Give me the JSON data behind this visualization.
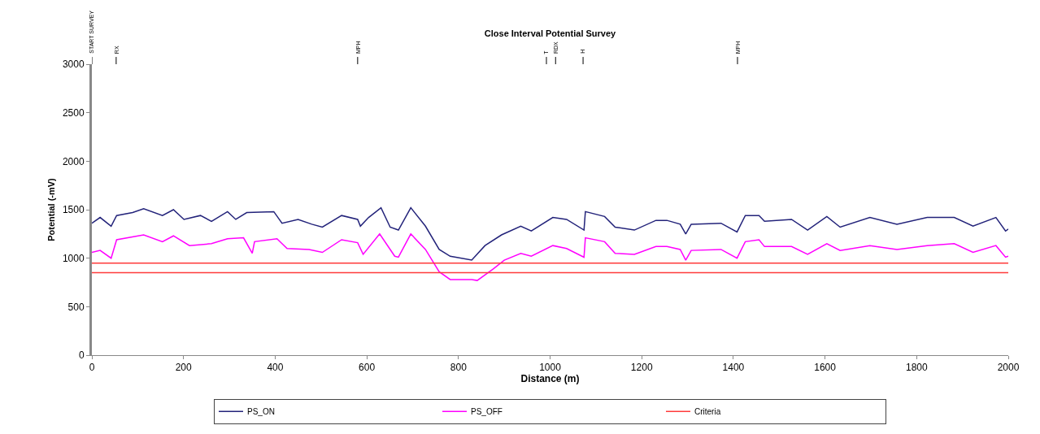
{
  "chart_data": {
    "type": "line",
    "title": "Close Interval Potential Survey",
    "xlabel": "Distance (m)",
    "ylabel": "Potential (-mV)",
    "xlim": [
      0,
      2000
    ],
    "xticks": [
      0,
      200,
      400,
      600,
      800,
      1000,
      1200,
      1400,
      1600,
      1800,
      2000
    ],
    "ylim": [
      0,
      3000
    ],
    "yticks": [
      0,
      500,
      1000,
      1500,
      2000,
      2500,
      3000
    ],
    "grid": false,
    "legend": "bottom",
    "marker": "none",
    "line_style": "solid",
    "ref_lines": [
      {
        "axis": "x",
        "value": 0,
        "label": "START SURVEY"
      },
      {
        "axis": "x",
        "value": 53,
        "label": "RX"
      },
      {
        "axis": "x",
        "value": 580,
        "label": "MPH"
      },
      {
        "axis": "x",
        "value": 992,
        "label": "T"
      },
      {
        "axis": "x",
        "value": 1012,
        "label": "RDX"
      },
      {
        "axis": "x",
        "value": 1072,
        "label": "H"
      },
      {
        "axis": "x",
        "value": 1409,
        "label": "MPH"
      }
    ],
    "series": [
      {
        "name": "PS_ON",
        "color": "#23237a",
        "x": [
          0,
          18,
          42,
          54,
          89,
          113,
          154,
          178,
          201,
          237,
          261,
          296,
          314,
          338,
          397,
          415,
          450,
          480,
          503,
          545,
          580,
          586,
          604,
          631,
          651,
          669,
          696,
          728,
          758,
          782,
          829,
          858,
          894,
          936,
          959,
          1006,
          1036,
          1074,
          1077,
          1119,
          1142,
          1184,
          1231,
          1255,
          1284,
          1296,
          1308,
          1373,
          1408,
          1426,
          1456,
          1468,
          1527,
          1562,
          1604,
          1633,
          1698,
          1757,
          1823,
          1882,
          1923,
          1973,
          1994,
          2000
        ],
        "values": [
          1360,
          1420,
          1330,
          1440,
          1470,
          1510,
          1440,
          1500,
          1400,
          1440,
          1380,
          1480,
          1400,
          1470,
          1480,
          1360,
          1400,
          1350,
          1320,
          1440,
          1400,
          1330,
          1420,
          1520,
          1320,
          1290,
          1520,
          1330,
          1090,
          1020,
          980,
          1130,
          1240,
          1330,
          1280,
          1420,
          1400,
          1290,
          1480,
          1430,
          1320,
          1290,
          1390,
          1390,
          1350,
          1250,
          1350,
          1360,
          1270,
          1440,
          1440,
          1380,
          1400,
          1290,
          1430,
          1320,
          1420,
          1350,
          1420,
          1420,
          1330,
          1420,
          1280,
          1300
        ]
      },
      {
        "name": "PS_OFF",
        "color": "#ff00ff",
        "x": [
          0,
          18,
          42,
          54,
          113,
          154,
          178,
          213,
          261,
          296,
          331,
          350,
          355,
          404,
          426,
          474,
          503,
          545,
          580,
          592,
          628,
          661,
          669,
          696,
          728,
          758,
          782,
          829,
          841,
          876,
          900,
          936,
          959,
          1006,
          1036,
          1074,
          1077,
          1119,
          1142,
          1184,
          1231,
          1255,
          1284,
          1296,
          1308,
          1373,
          1408,
          1426,
          1456,
          1468,
          1527,
          1562,
          1604,
          1633,
          1698,
          1757,
          1823,
          1882,
          1923,
          1973,
          1994,
          2000
        ],
        "values": [
          1060,
          1080,
          1000,
          1190,
          1240,
          1170,
          1230,
          1130,
          1150,
          1200,
          1210,
          1050,
          1170,
          1200,
          1100,
          1090,
          1060,
          1190,
          1160,
          1040,
          1250,
          1020,
          1010,
          1250,
          1090,
          860,
          780,
          780,
          770,
          890,
          980,
          1050,
          1020,
          1130,
          1100,
          1010,
          1210,
          1170,
          1050,
          1040,
          1120,
          1120,
          1090,
          980,
          1080,
          1090,
          1000,
          1170,
          1190,
          1120,
          1120,
          1040,
          1150,
          1080,
          1130,
          1090,
          1130,
          1150,
          1060,
          1130,
          1010,
          1020
        ]
      },
      {
        "name": "Criteria",
        "color": "#ff3b3b",
        "x": [
          0,
          2000
        ],
        "values": [
          950,
          950
        ]
      },
      {
        "color": "#ff3b3b",
        "x": [
          0,
          2000
        ],
        "values": [
          850,
          850
        ]
      }
    ]
  }
}
